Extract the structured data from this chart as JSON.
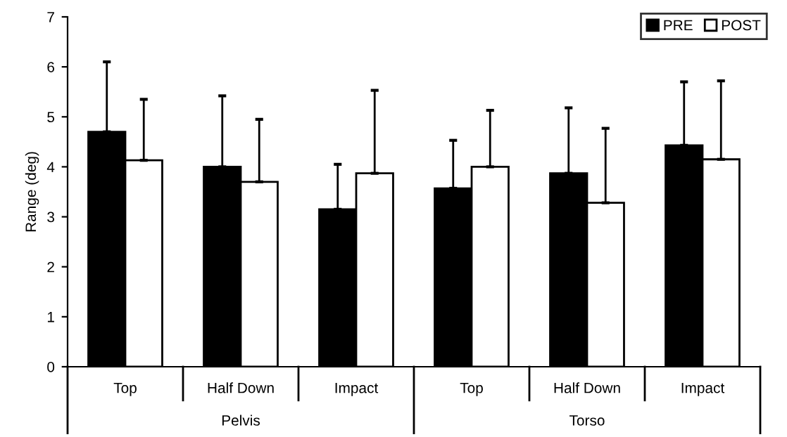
{
  "chart_data": {
    "type": "bar",
    "ylabel": "Range (deg)",
    "categories": [
      "Top",
      "Half Down",
      "Impact",
      "Top",
      "Half Down",
      "Impact"
    ],
    "series": [
      {
        "name": "PRE",
        "color": "#000000",
        "values": [
          4.7,
          4.0,
          3.15,
          3.57,
          3.87,
          4.43
        ],
        "errors": [
          [
            4.7,
            6.1
          ],
          [
            4.0,
            5.42
          ],
          [
            3.15,
            4.05
          ],
          [
            3.57,
            4.53
          ],
          [
            3.87,
            5.18
          ],
          [
            4.43,
            5.7
          ]
        ]
      },
      {
        "name": "POST",
        "color": "#ffffff",
        "values": [
          4.13,
          3.7,
          3.87,
          4.0,
          3.28,
          4.15
        ],
        "errors": [
          [
            4.13,
            5.35
          ],
          [
            3.7,
            4.95
          ],
          [
            3.87,
            5.53
          ],
          [
            4.0,
            5.13
          ],
          [
            3.28,
            4.77
          ],
          [
            4.15,
            5.72
          ]
        ]
      }
    ],
    "annotations": [
      "Pelvis",
      "Torso"
    ],
    "ylim": [
      0,
      7
    ],
    "yticks": [
      0,
      1,
      2,
      3,
      4,
      5,
      6,
      7
    ],
    "grid": false,
    "legend": "top right"
  }
}
